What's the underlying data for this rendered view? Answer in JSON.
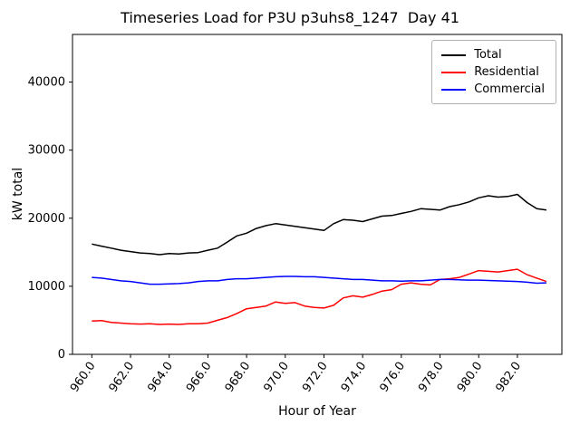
{
  "title": "Timeseries Load for P3U p3uhs8_1247  Day 41",
  "chart_data": {
    "type": "line",
    "title": "Timeseries Load for P3U p3uhs8_1247  Day 41",
    "xlabel": "Hour of Year",
    "ylabel": "kW total",
    "xlim": [
      959.0,
      984.3
    ],
    "ylim": [
      0,
      47000
    ],
    "grid": false,
    "legend_position": "upper right",
    "xticks": [
      960.0,
      962.0,
      964.0,
      966.0,
      968.0,
      970.0,
      972.0,
      974.0,
      976.0,
      978.0,
      980.0,
      982.0
    ],
    "yticks": [
      0,
      10000,
      20000,
      30000,
      40000
    ],
    "x": [
      960.0,
      960.5,
      961.0,
      961.5,
      962.0,
      962.5,
      963.0,
      963.5,
      964.0,
      964.5,
      965.0,
      965.5,
      966.0,
      966.5,
      967.0,
      967.5,
      968.0,
      968.5,
      969.0,
      969.5,
      970.0,
      970.5,
      971.0,
      971.5,
      972.0,
      972.5,
      973.0,
      973.5,
      974.0,
      974.5,
      975.0,
      975.5,
      976.0,
      976.5,
      977.0,
      977.5,
      978.0,
      978.5,
      979.0,
      979.5,
      980.0,
      980.5,
      981.0,
      981.5,
      982.0,
      982.5,
      983.0,
      983.5
    ],
    "series": [
      {
        "name": "Total",
        "color": "#000000",
        "values": [
          16200,
          15900,
          15600,
          15300,
          15100,
          14900,
          14800,
          14650,
          14800,
          14750,
          14900,
          14950,
          15300,
          15600,
          16500,
          17400,
          17800,
          18500,
          18900,
          19200,
          19000,
          18800,
          18600,
          18400,
          18200,
          19200,
          19800,
          19700,
          19500,
          19900,
          20300,
          20400,
          20700,
          21000,
          21400,
          21300,
          21200,
          21700,
          22000,
          22400,
          23000,
          23300,
          23100,
          23200,
          23500,
          22300,
          21400,
          21200
        ]
      },
      {
        "name": "Residential",
        "color": "#ff0000",
        "values": [
          4900,
          4950,
          4700,
          4600,
          4500,
          4450,
          4500,
          4400,
          4450,
          4400,
          4500,
          4500,
          4600,
          5000,
          5400,
          6000,
          6700,
          6900,
          7100,
          7700,
          7500,
          7600,
          7100,
          6900,
          6800,
          7200,
          8300,
          8600,
          8400,
          8800,
          9300,
          9500,
          10300,
          10500,
          10300,
          10200,
          11000,
          11100,
          11300,
          11800,
          12300,
          12200,
          12100,
          12300,
          12500,
          11700,
          11200,
          10700
        ]
      },
      {
        "name": "Commercial",
        "color": "#0000ff",
        "values": [
          11300,
          11200,
          11000,
          10800,
          10700,
          10500,
          10300,
          10300,
          10350,
          10400,
          10500,
          10700,
          10800,
          10800,
          11000,
          11100,
          11100,
          11200,
          11300,
          11400,
          11450,
          11450,
          11400,
          11400,
          11300,
          11200,
          11100,
          11000,
          11000,
          10900,
          10800,
          10800,
          10750,
          10800,
          10800,
          10900,
          11000,
          11000,
          10950,
          10900,
          10900,
          10850,
          10800,
          10750,
          10700,
          10600,
          10450,
          10500
        ]
      }
    ]
  }
}
